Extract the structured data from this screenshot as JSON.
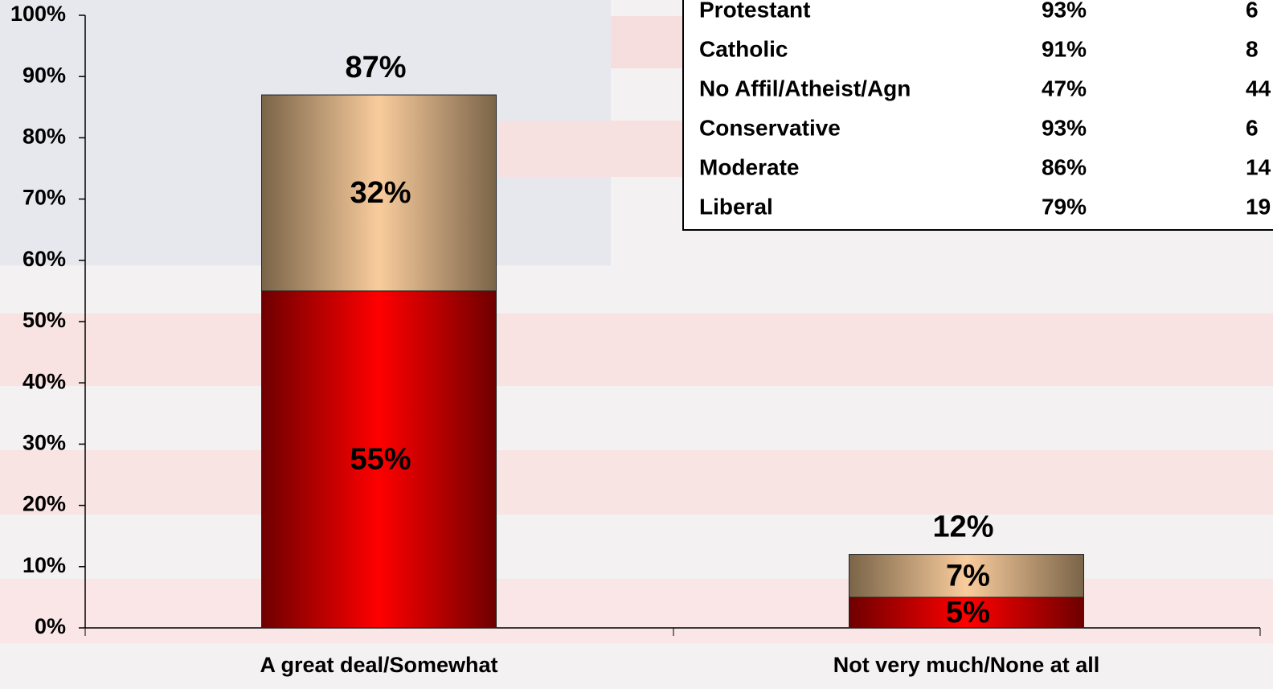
{
  "chart_data": {
    "type": "stacked_bar",
    "categories": [
      "A great deal/Somewhat",
      "Not very much/None at all"
    ],
    "series": [
      {
        "color": "#ff0000",
        "values": [
          55,
          5
        ],
        "value_labels": [
          "55%",
          "5%"
        ]
      },
      {
        "color": "#f9cc9d",
        "values": [
          32,
          7
        ],
        "value_labels": [
          "32%",
          "7%"
        ]
      }
    ],
    "totals": [
      87,
      12
    ],
    "total_labels": [
      "87%",
      "12%"
    ],
    "ylim": [
      0,
      100
    ],
    "yticks": [
      {
        "value": 0,
        "label": "0%"
      },
      {
        "value": 10,
        "label": "10%"
      },
      {
        "value": 20,
        "label": "20%"
      },
      {
        "value": 30,
        "label": "30%"
      },
      {
        "value": 40,
        "label": "40%"
      },
      {
        "value": 50,
        "label": "50%"
      },
      {
        "value": 60,
        "label": "60%"
      },
      {
        "value": 70,
        "label": "70%"
      },
      {
        "value": 80,
        "label": "80%"
      },
      {
        "value": 90,
        "label": "90%"
      },
      {
        "value": 100,
        "label": "100%"
      }
    ],
    "table": {
      "rows": [
        [
          "Protestant",
          "93%",
          "6"
        ],
        [
          "Catholic",
          "91%",
          "8"
        ],
        [
          "No Affil/Atheist/Agn",
          "47%",
          "44"
        ],
        [
          "Conservative",
          "93%",
          "6"
        ],
        [
          "Moderate",
          "86%",
          "14"
        ],
        [
          "Liberal",
          "79%",
          "19"
        ]
      ]
    }
  }
}
